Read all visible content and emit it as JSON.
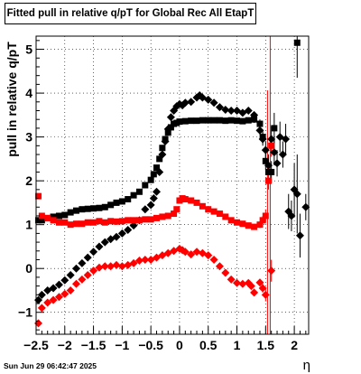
{
  "header": {
    "title": "Fitted pull in relative q/pT for Global Rec All EtapT",
    "timestamp": "Sun Jun 29 06:42:47 2025"
  },
  "chart_data": {
    "type": "scatter",
    "title": "Fitted pull in relative q/pT for Global Rec All EtapT",
    "xlabel": "η",
    "ylabel": "pull in relative q/pT",
    "xlim": [
      -2.5,
      2.25
    ],
    "ylim": [
      -1.5,
      5.3
    ],
    "xticks": [
      -2.5,
      -2,
      -1.5,
      -1,
      -0.5,
      0,
      0.5,
      1,
      1.5,
      2
    ],
    "xtick_labels": [
      "−2.5",
      "−2",
      "−1.5",
      "−1",
      "−0.5",
      "0",
      "0.5",
      "1",
      "1.5",
      "2"
    ],
    "yticks": [
      -1,
      0,
      1,
      2,
      3,
      4,
      5
    ],
    "ytick_labels": [
      "−1",
      "0",
      "1",
      "2",
      "3",
      "4",
      "5"
    ],
    "grid": true,
    "vlines": [
      {
        "x": 1.58,
        "color": "#ff0000"
      }
    ],
    "series": [
      {
        "marker": "square",
        "color": "#000000",
        "x": [
          -2.46,
          -2.4,
          -2.3,
          -2.2,
          -2.1,
          -2.0,
          -1.9,
          -1.8,
          -1.7,
          -1.6,
          -1.5,
          -1.4,
          -1.3,
          -1.2,
          -1.1,
          -1.0,
          -0.9,
          -0.8,
          -0.7,
          -0.6,
          -0.5,
          -0.45,
          -0.4,
          -0.35,
          -0.3,
          -0.25,
          -0.2,
          -0.15,
          -0.1,
          -0.05,
          0.0,
          0.1,
          0.2,
          0.3,
          0.4,
          0.5,
          0.6,
          0.7,
          0.8,
          0.9,
          1.0,
          1.1,
          1.2,
          1.3,
          1.4,
          1.45,
          1.5,
          1.55,
          1.6,
          1.65,
          2.05
        ],
        "y": [
          1.1,
          1.1,
          1.15,
          1.18,
          1.2,
          1.22,
          1.28,
          1.32,
          1.35,
          1.36,
          1.37,
          1.38,
          1.4,
          1.45,
          1.5,
          1.53,
          1.58,
          1.67,
          1.75,
          1.9,
          2.02,
          2.15,
          2.3,
          2.5,
          2.75,
          2.95,
          3.1,
          3.22,
          3.3,
          3.32,
          3.35,
          3.36,
          3.37,
          3.37,
          3.38,
          3.38,
          3.38,
          3.38,
          3.37,
          3.38,
          3.37,
          3.36,
          3.38,
          3.4,
          3.3,
          3.0,
          2.45,
          2.2,
          2.2,
          3.2,
          5.15
        ],
        "yerr": [
          0.05,
          0.05,
          0.04,
          0.04,
          0.04,
          0.04,
          0.04,
          0.04,
          0.04,
          0.04,
          0.04,
          0.04,
          0.04,
          0.04,
          0.04,
          0.04,
          0.04,
          0.04,
          0.04,
          0.05,
          0.05,
          0.05,
          0.05,
          0.05,
          0.05,
          0.05,
          0.05,
          0.05,
          0.05,
          0.05,
          0.05,
          0.05,
          0.05,
          0.05,
          0.05,
          0.05,
          0.05,
          0.05,
          0.05,
          0.05,
          0.05,
          0.05,
          0.05,
          0.08,
          0.1,
          0.15,
          0.2,
          0.2,
          0.25,
          0.35,
          0.8
        ]
      },
      {
        "marker": "diamond",
        "color": "#000000",
        "x": [
          -2.46,
          -2.4,
          -2.3,
          -2.2,
          -2.1,
          -2.0,
          -1.9,
          -1.8,
          -1.7,
          -1.6,
          -1.5,
          -1.4,
          -1.3,
          -1.2,
          -1.1,
          -1.0,
          -0.9,
          -0.8,
          -0.7,
          -0.6,
          -0.5,
          -0.45,
          -0.4,
          -0.35,
          -0.3,
          -0.25,
          -0.2,
          -0.15,
          -0.1,
          -0.05,
          0.0,
          0.05,
          0.1,
          0.2,
          0.3,
          0.35,
          0.4,
          0.5,
          0.6,
          0.7,
          0.8,
          0.9,
          1.0,
          1.1,
          1.2,
          1.3,
          1.4,
          1.45,
          1.5,
          1.55,
          1.6,
          1.65,
          1.7,
          1.75,
          1.8,
          1.85,
          1.9,
          1.95,
          2.0,
          2.05,
          2.1,
          2.2
        ],
        "y": [
          -0.72,
          -0.6,
          -0.5,
          -0.45,
          -0.37,
          -0.27,
          -0.15,
          0.0,
          0.12,
          0.25,
          0.38,
          0.5,
          0.6,
          0.67,
          0.72,
          0.8,
          0.88,
          0.98,
          1.1,
          1.35,
          1.45,
          1.6,
          1.75,
          2.2,
          2.6,
          2.9,
          3.18,
          3.45,
          3.6,
          3.7,
          3.75,
          3.72,
          3.78,
          3.8,
          3.9,
          3.95,
          3.9,
          3.85,
          3.78,
          3.68,
          3.62,
          3.6,
          3.6,
          3.55,
          3.6,
          3.5,
          3.15,
          2.95,
          2.7,
          2.35,
          2.95,
          2.65,
          2.4,
          3.0,
          2.6,
          2.95,
          1.3,
          1.2,
          1.8,
          1.7,
          0.75,
          1.4
        ],
        "yerr": [
          0.05,
          0.04,
          0.04,
          0.04,
          0.04,
          0.04,
          0.04,
          0.04,
          0.04,
          0.04,
          0.04,
          0.04,
          0.04,
          0.04,
          0.04,
          0.04,
          0.04,
          0.04,
          0.04,
          0.05,
          0.05,
          0.05,
          0.05,
          0.05,
          0.05,
          0.05,
          0.05,
          0.05,
          0.05,
          0.05,
          0.05,
          0.05,
          0.05,
          0.05,
          0.05,
          0.05,
          0.05,
          0.05,
          0.05,
          0.05,
          0.05,
          0.05,
          0.05,
          0.05,
          0.05,
          0.06,
          0.1,
          0.15,
          0.2,
          0.25,
          0.3,
          0.3,
          0.3,
          0.35,
          0.3,
          0.35,
          0.4,
          0.35,
          0.6,
          0.9,
          0.5,
          0.3
        ]
      },
      {
        "marker": "square",
        "color": "#ff0000",
        "x": [
          -2.46,
          -2.4,
          -2.3,
          -2.2,
          -2.1,
          -2.0,
          -1.9,
          -1.8,
          -1.7,
          -1.6,
          -1.5,
          -1.4,
          -1.3,
          -1.2,
          -1.1,
          -1.0,
          -0.9,
          -0.8,
          -0.7,
          -0.6,
          -0.5,
          -0.4,
          -0.3,
          -0.2,
          -0.1,
          -0.05,
          0.0,
          0.05,
          0.1,
          0.2,
          0.3,
          0.4,
          0.5,
          0.6,
          0.7,
          0.8,
          0.9,
          1.0,
          1.1,
          1.2,
          1.3,
          1.4,
          1.45,
          1.5,
          1.55,
          1.6
        ],
        "y": [
          1.65,
          1.2,
          1.15,
          1.1,
          1.05,
          1.05,
          1.0,
          1.02,
          1.02,
          1.05,
          1.05,
          1.08,
          1.05,
          1.08,
          1.07,
          1.08,
          1.1,
          1.1,
          1.1,
          1.12,
          1.12,
          1.15,
          1.18,
          1.2,
          1.25,
          1.35,
          1.55,
          1.6,
          1.58,
          1.55,
          1.5,
          1.42,
          1.35,
          1.3,
          1.25,
          1.18,
          1.1,
          1.05,
          1.02,
          0.98,
          0.95,
          1.0,
          1.1,
          1.2,
          2.0,
          2.8
        ],
        "yerr": [
          0.06,
          0.04,
          0.04,
          0.04,
          0.04,
          0.04,
          0.04,
          0.04,
          0.04,
          0.04,
          0.04,
          0.04,
          0.04,
          0.04,
          0.04,
          0.04,
          0.04,
          0.04,
          0.04,
          0.04,
          0.04,
          0.04,
          0.04,
          0.04,
          0.05,
          0.05,
          0.05,
          0.05,
          0.05,
          0.05,
          0.05,
          0.05,
          0.05,
          0.05,
          0.05,
          0.05,
          0.05,
          0.05,
          0.05,
          0.05,
          0.06,
          0.08,
          0.1,
          0.15,
          0.2,
          0.25
        ]
      },
      {
        "marker": "diamond",
        "color": "#ff0000",
        "x": [
          -2.46,
          -2.4,
          -2.3,
          -2.2,
          -2.1,
          -2.0,
          -1.9,
          -1.8,
          -1.7,
          -1.6,
          -1.5,
          -1.4,
          -1.3,
          -1.2,
          -1.1,
          -1.0,
          -0.9,
          -0.8,
          -0.7,
          -0.6,
          -0.5,
          -0.4,
          -0.3,
          -0.2,
          -0.1,
          0.0,
          0.05,
          0.1,
          0.2,
          0.3,
          0.4,
          0.5,
          0.6,
          0.7,
          0.8,
          0.9,
          1.0,
          1.1,
          1.2,
          1.25,
          1.3,
          1.4,
          1.45,
          1.5,
          1.6
        ],
        "y": [
          -1.25,
          -0.9,
          -0.78,
          -0.72,
          -0.65,
          -0.58,
          -0.5,
          -0.35,
          -0.25,
          -0.15,
          -0.05,
          0.02,
          0.05,
          0.05,
          0.08,
          0.05,
          0.08,
          0.12,
          0.18,
          0.2,
          0.2,
          0.25,
          0.3,
          0.35,
          0.4,
          0.45,
          0.42,
          0.38,
          0.32,
          0.38,
          0.35,
          0.3,
          0.2,
          0.05,
          -0.1,
          -0.25,
          -0.33,
          -0.35,
          -0.33,
          -0.4,
          -0.55,
          -0.32,
          -0.45,
          -0.6,
          -0.05
        ],
        "yerr": [
          0.06,
          0.04,
          0.04,
          0.04,
          0.04,
          0.04,
          0.04,
          0.04,
          0.04,
          0.04,
          0.04,
          0.04,
          0.04,
          0.04,
          0.04,
          0.04,
          0.04,
          0.04,
          0.04,
          0.04,
          0.04,
          0.04,
          0.04,
          0.04,
          0.05,
          0.05,
          0.05,
          0.05,
          0.05,
          0.05,
          0.05,
          0.05,
          0.05,
          0.05,
          0.05,
          0.05,
          0.05,
          0.05,
          0.05,
          0.05,
          0.06,
          0.08,
          0.1,
          0.15,
          0.25
        ]
      }
    ]
  }
}
